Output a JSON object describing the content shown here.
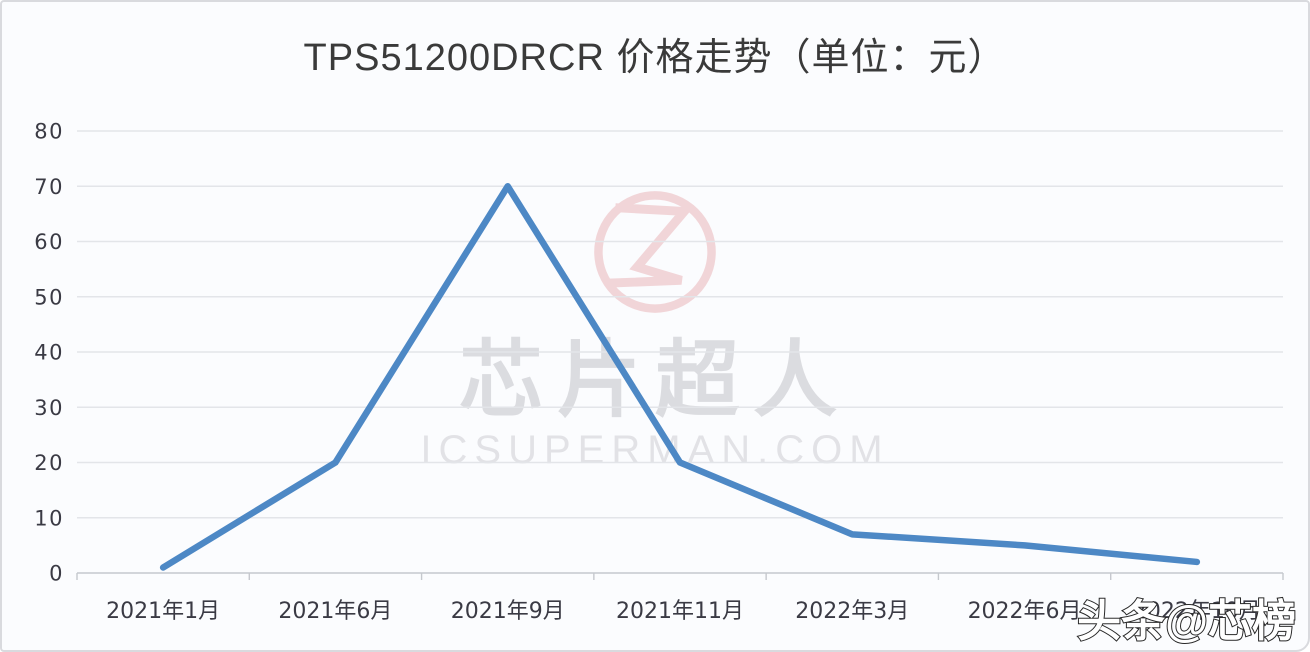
{
  "card": {
    "background": "#fbfcfe",
    "border_color": "#d9dade"
  },
  "chart_data": {
    "type": "line",
    "title": "TPS51200DRCR 价格走势（单位：元）",
    "title_color": "#3a3a3a",
    "categories": [
      "2021年1月",
      "2021年6月",
      "2021年9月",
      "2021年11月",
      "2022年3月",
      "2022年6月",
      "2022年10月"
    ],
    "values": [
      1,
      20,
      70,
      20,
      7,
      5,
      2
    ],
    "yticks": [
      0,
      10,
      20,
      30,
      40,
      50,
      60,
      70,
      80
    ],
    "ylim": [
      0,
      80
    ],
    "xlabel": "",
    "ylabel": "",
    "grid": true,
    "legend_position": "none",
    "line_color": "#4d88c5",
    "grid_color": "#e3e5e9",
    "axis_color": "#c5c8cd",
    "tick_label_color": "#3a3a44"
  },
  "watermarks": {
    "center_text": "芯片超人",
    "center_subtext": "ICSUPERMAN.COM",
    "corner_text": "头条@芯榜",
    "logo_color": "#e9b0b4"
  }
}
